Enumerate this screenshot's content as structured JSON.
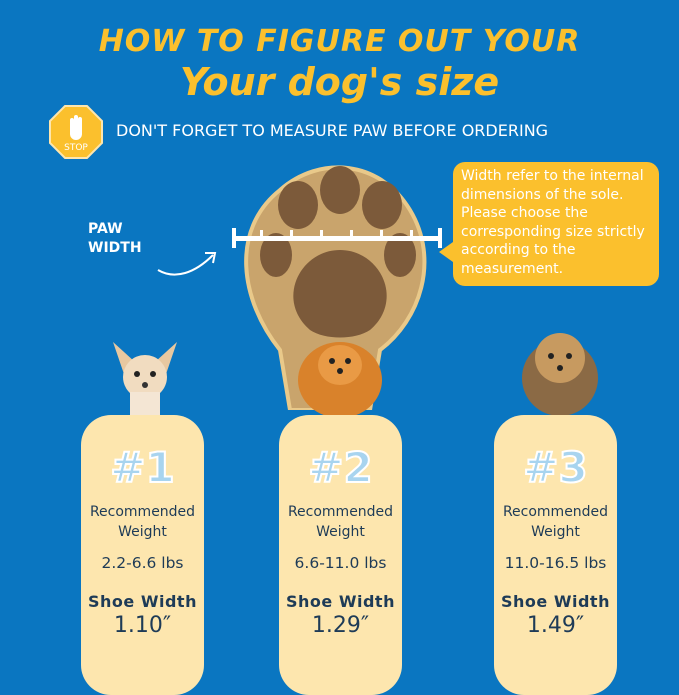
{
  "title_line1": "HOW TO FIGURE OUT YOUR",
  "title_line2": "Your dog's size",
  "stop_sign": {
    "label": "STOP",
    "icon": "stop-hand-icon"
  },
  "reminder": "DON'T FORGET TO MEASURE PAW BEFORE ORDERING",
  "paw_width_label": [
    "PAW",
    "WIDTH"
  ],
  "callout": "Width refer to the internal dimensions of the sole. Please choose the corresponding size strictly according to the measurement.",
  "sizes": [
    {
      "number": "#1",
      "weight_label": "Recommended Weight",
      "weight": "2.2-6.6 lbs",
      "width_label": "Shoe Width",
      "width": "1.10″",
      "dog": "chihuahua"
    },
    {
      "number": "#2",
      "weight_label": "Recommended Weight",
      "weight": "6.6-11.0 lbs",
      "width_label": "Shoe Width",
      "width": "1.29″",
      "dog": "pomeranian"
    },
    {
      "number": "#3",
      "weight_label": "Recommended Weight",
      "weight": "11.0-16.5 lbs",
      "width_label": "Shoe Width",
      "width": "1.49″",
      "dog": "yorkshire terrier"
    }
  ],
  "colors": {
    "background": "#0a76c1",
    "accent": "#fbc02d",
    "card": "#fde6ae",
    "text": "#1e3b57"
  }
}
